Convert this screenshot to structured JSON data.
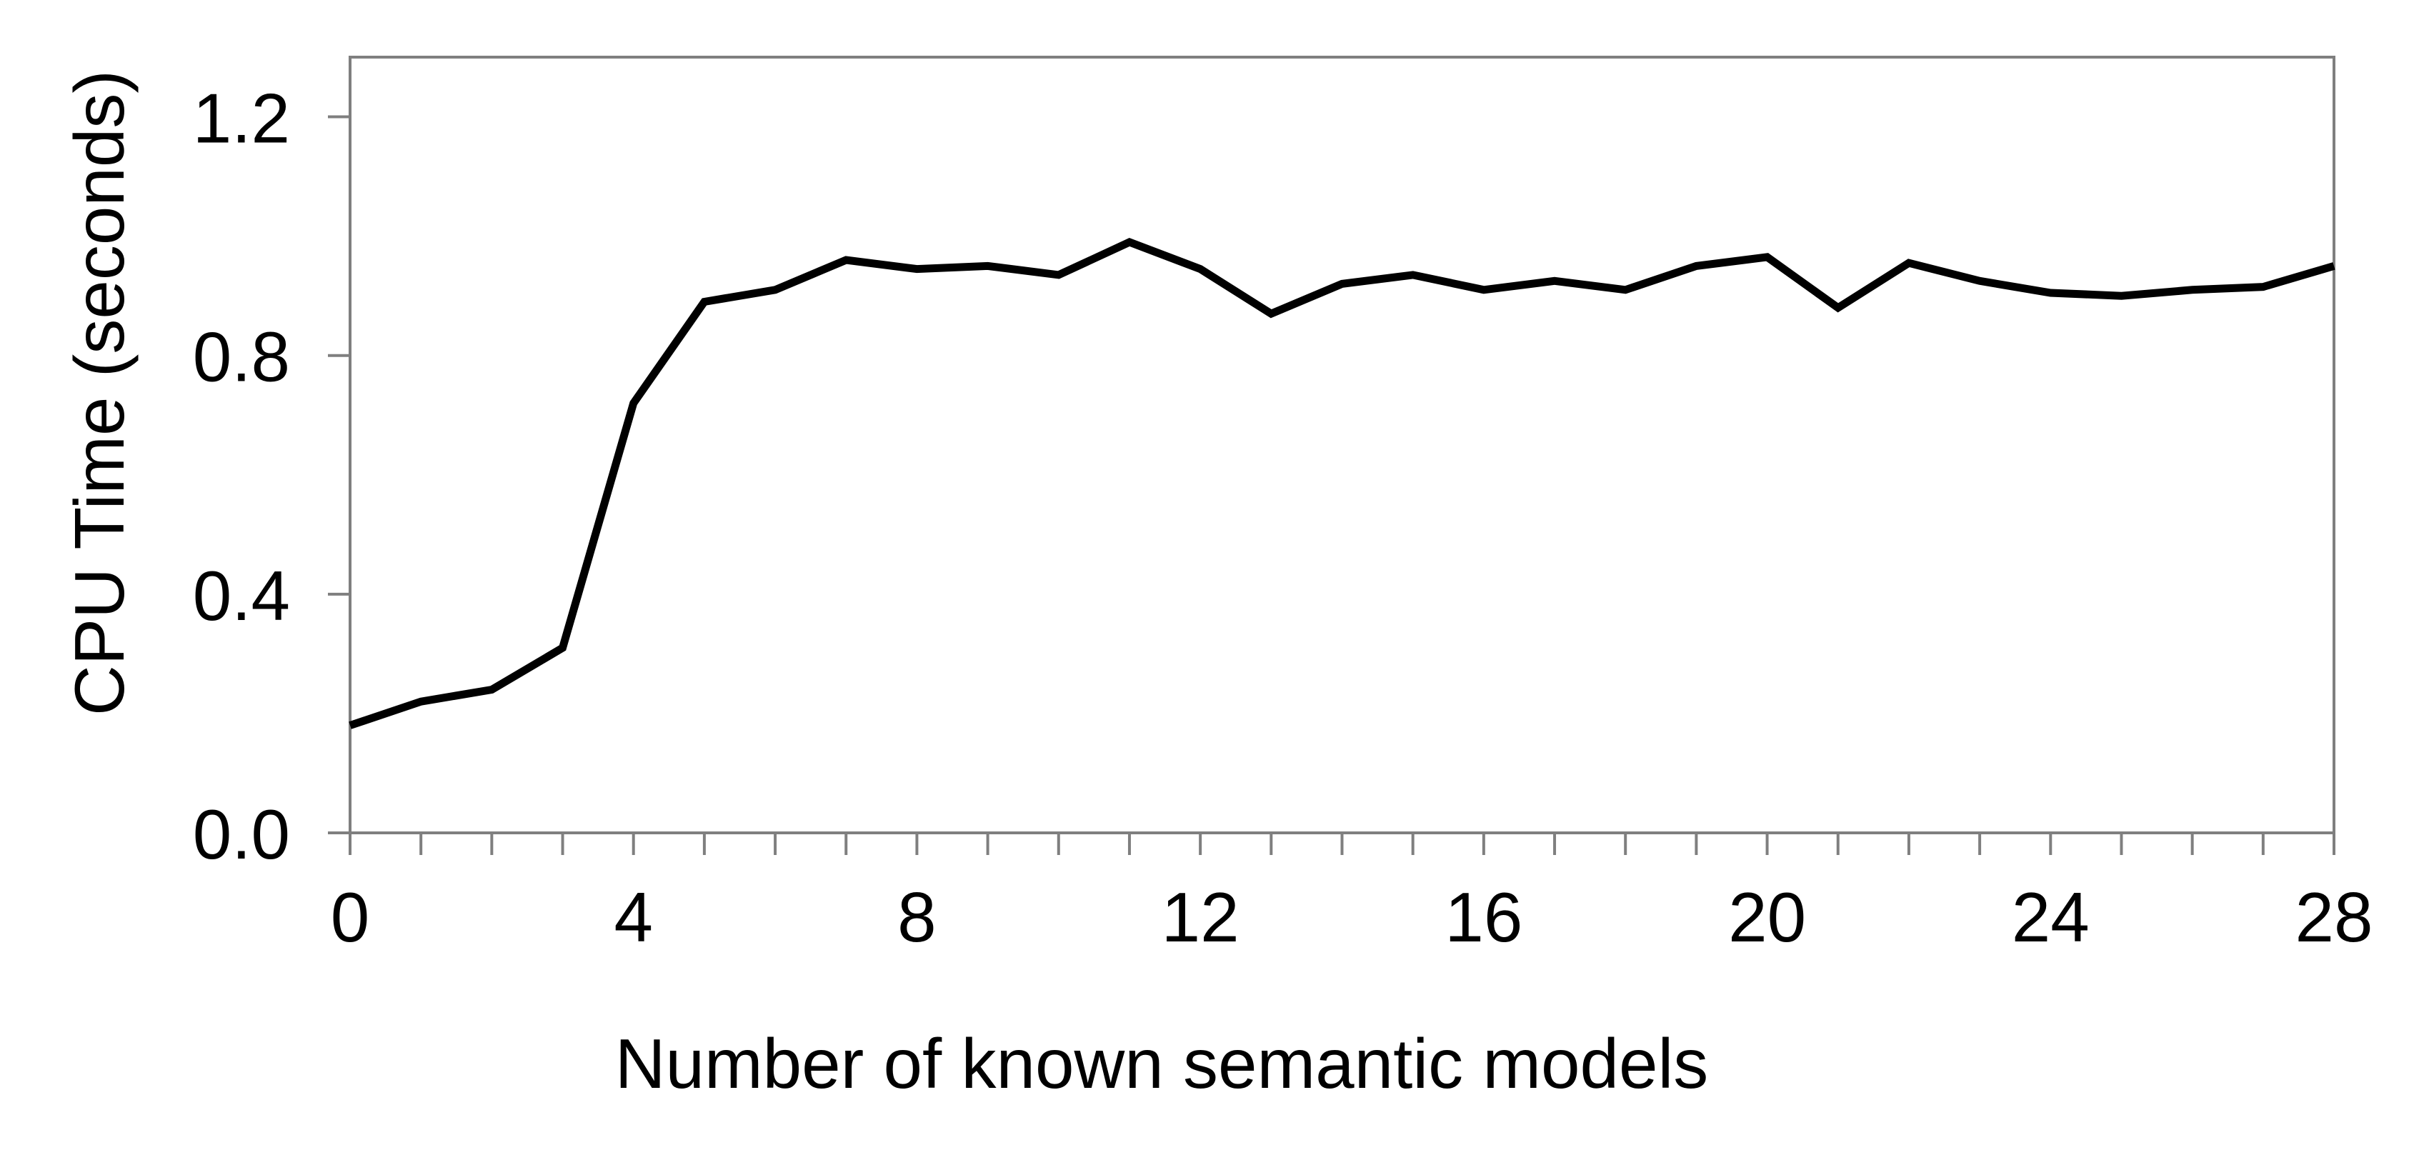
{
  "chart_data": {
    "type": "line",
    "title": "",
    "xlabel": "Number of known semantic models",
    "ylabel": "CPU Time (seconds)",
    "x": [
      0,
      1,
      2,
      3,
      4,
      5,
      6,
      7,
      8,
      9,
      10,
      11,
      12,
      13,
      14,
      15,
      16,
      17,
      18,
      19,
      20,
      21,
      22,
      23,
      24,
      25,
      26,
      27,
      28
    ],
    "series": [
      {
        "name": "CPU Time",
        "color": "#000000",
        "values": [
          0.18,
          0.22,
          0.24,
          0.31,
          0.72,
          0.89,
          0.91,
          0.96,
          0.945,
          0.95,
          0.935,
          0.99,
          0.945,
          0.87,
          0.92,
          0.935,
          0.91,
          0.925,
          0.91,
          0.95,
          0.965,
          0.88,
          0.955,
          0.925,
          0.905,
          0.9,
          0.91,
          0.915,
          0.95
        ]
      }
    ],
    "xlim": [
      0,
      28
    ],
    "ylim": [
      0,
      1.3
    ],
    "x_major_ticks": [
      0,
      4,
      8,
      12,
      16,
      20,
      24,
      28
    ],
    "x_tick_labels": [
      "0",
      "4",
      "8",
      "12",
      "16",
      "20",
      "24",
      "28"
    ],
    "x_minor_tick_step": 1,
    "y_ticks": [
      0,
      0.4,
      0.8,
      1.2
    ],
    "y_tick_labels": [
      "0.0",
      "0.4",
      "0.8",
      "1.2"
    ],
    "grid": false,
    "legend": "none",
    "axis_color": "#7f7f7f",
    "background": "#ffffff"
  }
}
